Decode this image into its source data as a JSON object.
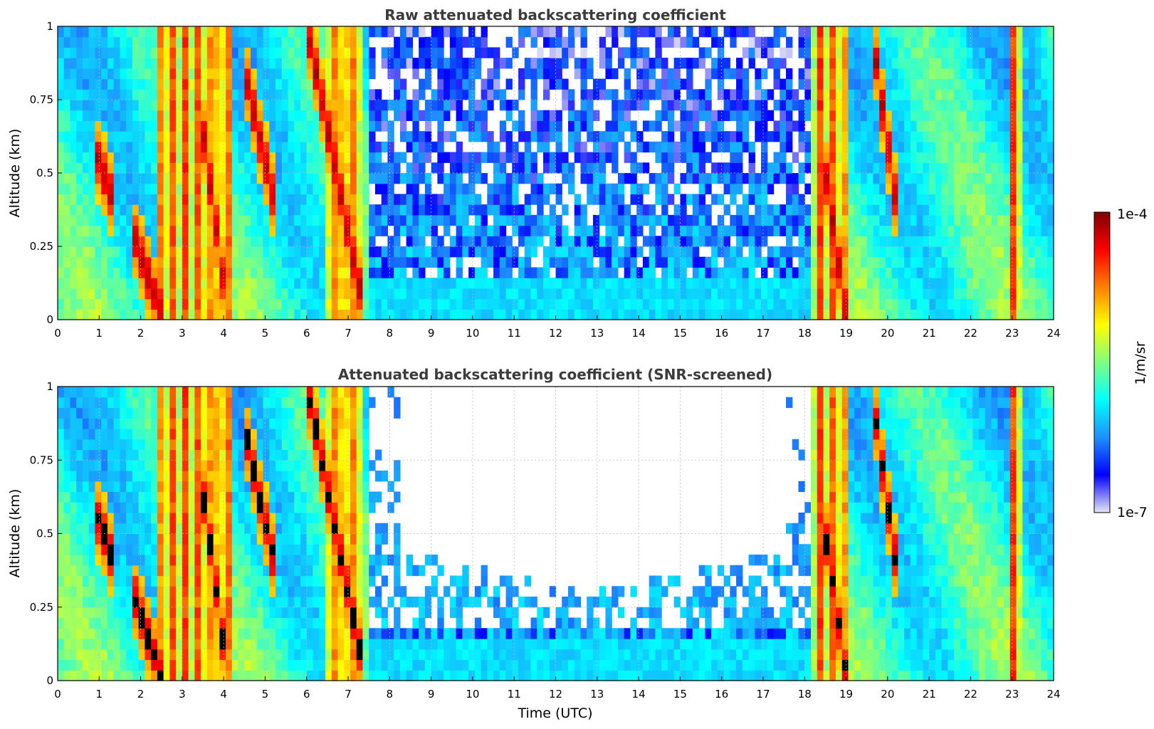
{
  "chart_data": [
    {
      "type": "heatmap",
      "title": "Raw attenuated backscattering coefficient",
      "xlabel": "",
      "ylabel": "Altitude (km)",
      "xlim": [
        0,
        24
      ],
      "ylim": [
        0,
        1
      ],
      "xticks": [
        "0",
        "1",
        "2",
        "3",
        "4",
        "5",
        "6",
        "7",
        "8",
        "9",
        "10",
        "11",
        "12",
        "13",
        "14",
        "15",
        "16",
        "17",
        "18",
        "19",
        "20",
        "21",
        "22",
        "23",
        "24"
      ],
      "yticks": [
        "0",
        "0.25",
        "0.5",
        "0.75",
        "1"
      ],
      "grid": true,
      "colorscale": "jet-log",
      "screening": false,
      "cloud_events": [
        {
          "start": 0.9,
          "end": 1.4,
          "base_start": 0.58,
          "base_end": 0.38
        },
        {
          "start": 1.8,
          "end": 2.5,
          "base_start": 0.3,
          "base_end": 0.02
        },
        {
          "start": 3.4,
          "end": 4.1,
          "base_start": 0.75,
          "base_end": 0.02
        },
        {
          "start": 4.5,
          "end": 5.3,
          "base_start": 0.85,
          "base_end": 0.35
        },
        {
          "start": 6.0,
          "end": 7.4,
          "base_start": 1.0,
          "base_end": 0.02
        },
        {
          "start": 18.4,
          "end": 19.0,
          "base_start": 0.6,
          "base_end": 0.02
        },
        {
          "start": 19.7,
          "end": 20.3,
          "base_start": 0.9,
          "base_end": 0.3
        }
      ],
      "tall_columns": [
        {
          "start": 2.4,
          "end": 4.2
        },
        {
          "start": 6.5,
          "end": 7.3
        },
        {
          "start": 18.2,
          "end": 19.1
        },
        {
          "start": 22.9,
          "end": 23.3
        }
      ]
    },
    {
      "type": "heatmap",
      "title": "Attenuated backscattering coefficient (SNR-screened)",
      "xlabel": "Time (UTC)",
      "ylabel": "Altitude (km)",
      "xlim": [
        0,
        24
      ],
      "ylim": [
        0,
        1
      ],
      "xticks": [
        "0",
        "1",
        "2",
        "3",
        "4",
        "5",
        "6",
        "7",
        "8",
        "9",
        "10",
        "11",
        "12",
        "13",
        "14",
        "15",
        "16",
        "17",
        "18",
        "19",
        "20",
        "21",
        "22",
        "23",
        "24"
      ],
      "yticks": [
        "0",
        "0.25",
        "0.5",
        "0.75",
        "1"
      ],
      "grid": true,
      "colorscale": "jet-log",
      "screening": true,
      "cloud_events": [
        {
          "start": 0.9,
          "end": 1.4,
          "base_start": 0.58,
          "base_end": 0.38
        },
        {
          "start": 1.8,
          "end": 2.5,
          "base_start": 0.3,
          "base_end": 0.02
        },
        {
          "start": 3.4,
          "end": 4.1,
          "base_start": 0.75,
          "base_end": 0.02
        },
        {
          "start": 4.5,
          "end": 5.3,
          "base_start": 0.85,
          "base_end": 0.35
        },
        {
          "start": 6.0,
          "end": 7.4,
          "base_start": 1.0,
          "base_end": 0.02
        },
        {
          "start": 18.4,
          "end": 19.0,
          "base_start": 0.6,
          "base_end": 0.02
        },
        {
          "start": 19.7,
          "end": 20.3,
          "base_start": 0.9,
          "base_end": 0.3
        }
      ],
      "tall_columns": [
        {
          "start": 2.4,
          "end": 4.2
        },
        {
          "start": 6.5,
          "end": 7.3
        },
        {
          "start": 18.2,
          "end": 19.1
        },
        {
          "start": 22.9,
          "end": 23.3
        }
      ]
    }
  ],
  "colorbar": {
    "label": "1/m/sr",
    "max_label": "1e-4",
    "min_label": "1e-7",
    "range": [
      1e-07,
      0.0001
    ],
    "colors": [
      "#e6e6f8",
      "#0000ff",
      "#1e90ff",
      "#00ffff",
      "#80ff80",
      "#ffff00",
      "#ff8000",
      "#ff0000",
      "#800000"
    ]
  }
}
